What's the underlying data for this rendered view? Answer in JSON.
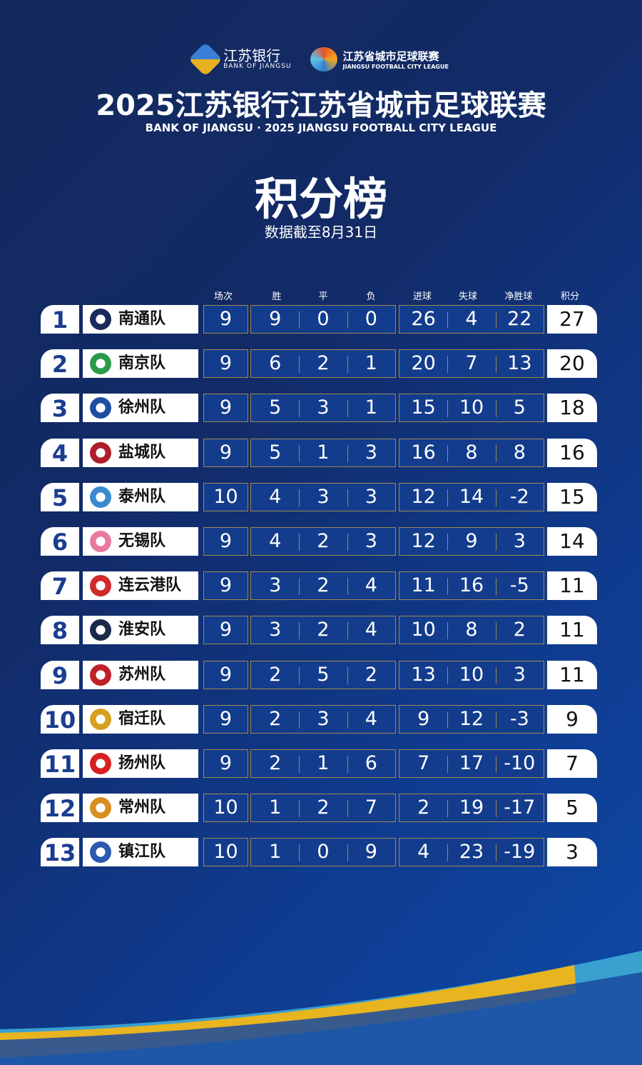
{
  "header": {
    "bank_cn": "江苏银行",
    "bank_en": "BANK OF JIANGSU",
    "league_cn": "江苏省城市足球联赛",
    "league_en": "JIANGSU FOOTBALL CITY LEAGUE",
    "title": "2025江苏银行江苏省城市足球联赛",
    "subtitle": "BANK OF JIANGSU · 2025 JIANGSU FOOTBALL CITY LEAGUE",
    "heading": "积分榜",
    "date": "数据截至8月31日"
  },
  "columns": [
    "场次",
    "胜",
    "平",
    "负",
    "进球",
    "失球",
    "净胜球",
    "积分"
  ],
  "rows": [
    {
      "rank": "1",
      "team": "南通队",
      "p": "9",
      "w": "9",
      "d": "0",
      "l": "0",
      "gf": "26",
      "ga": "4",
      "gd": "22",
      "pts": "27",
      "color": "#1b2a5a"
    },
    {
      "rank": "2",
      "team": "南京队",
      "p": "9",
      "w": "6",
      "d": "2",
      "l": "1",
      "gf": "20",
      "ga": "7",
      "gd": "13",
      "pts": "20",
      "color": "#2a9a4a"
    },
    {
      "rank": "3",
      "team": "徐州队",
      "p": "9",
      "w": "5",
      "d": "3",
      "l": "1",
      "gf": "15",
      "ga": "10",
      "gd": "5",
      "pts": "18",
      "color": "#1f4fa0"
    },
    {
      "rank": "4",
      "team": "盐城队",
      "p": "9",
      "w": "5",
      "d": "1",
      "l": "3",
      "gf": "16",
      "ga": "8",
      "gd": "8",
      "pts": "16",
      "color": "#b01d2a"
    },
    {
      "rank": "5",
      "team": "泰州队",
      "p": "10",
      "w": "4",
      "d": "3",
      "l": "3",
      "gf": "12",
      "ga": "14",
      "gd": "-2",
      "pts": "15",
      "color": "#3a8ad0"
    },
    {
      "rank": "6",
      "team": "无锡队",
      "p": "9",
      "w": "4",
      "d": "2",
      "l": "3",
      "gf": "12",
      "ga": "9",
      "gd": "3",
      "pts": "14",
      "color": "#e87aa0"
    },
    {
      "rank": "7",
      "team": "连云港队",
      "p": "9",
      "w": "3",
      "d": "2",
      "l": "4",
      "gf": "11",
      "ga": "16",
      "gd": "-5",
      "pts": "11",
      "color": "#d02a2a"
    },
    {
      "rank": "8",
      "team": "淮安队",
      "p": "9",
      "w": "3",
      "d": "2",
      "l": "4",
      "gf": "10",
      "ga": "8",
      "gd": "2",
      "pts": "11",
      "color": "#1a2a4a"
    },
    {
      "rank": "9",
      "team": "苏州队",
      "p": "9",
      "w": "2",
      "d": "5",
      "l": "2",
      "gf": "13",
      "ga": "10",
      "gd": "3",
      "pts": "11",
      "color": "#c0202a"
    },
    {
      "rank": "10",
      "team": "宿迁队",
      "p": "9",
      "w": "2",
      "d": "3",
      "l": "4",
      "gf": "9",
      "ga": "12",
      "gd": "-3",
      "pts": "9",
      "color": "#d8a020"
    },
    {
      "rank": "11",
      "team": "扬州队",
      "p": "9",
      "w": "2",
      "d": "1",
      "l": "6",
      "gf": "7",
      "ga": "17",
      "gd": "-10",
      "pts": "7",
      "color": "#d82020"
    },
    {
      "rank": "12",
      "team": "常州队",
      "p": "10",
      "w": "1",
      "d": "2",
      "l": "7",
      "gf": "2",
      "ga": "19",
      "gd": "-17",
      "pts": "5",
      "color": "#d89020"
    },
    {
      "rank": "13",
      "team": "镇江队",
      "p": "10",
      "w": "1",
      "d": "0",
      "l": "9",
      "gf": "4",
      "ga": "23",
      "gd": "-19",
      "pts": "3",
      "color": "#2a5ab0"
    }
  ]
}
